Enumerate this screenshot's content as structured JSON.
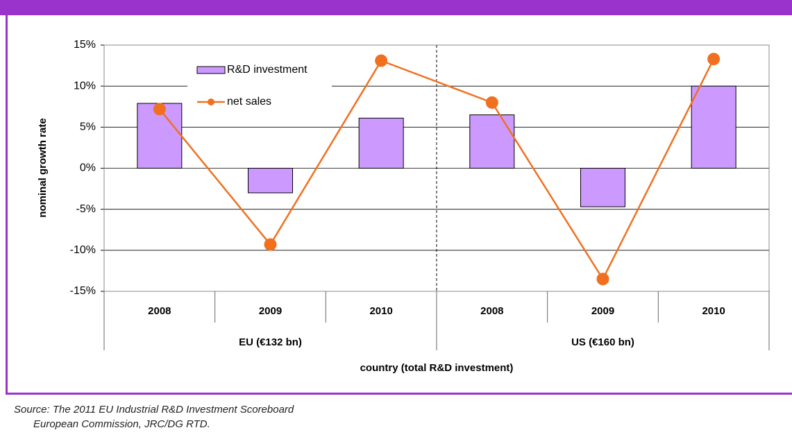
{
  "chart_data": {
    "type": "bar",
    "categories": [
      "2008",
      "2009",
      "2010",
      "2008",
      "2009",
      "2010"
    ],
    "groups": [
      "EU (€132 bn)",
      "US (€160 bn)"
    ],
    "series": [
      {
        "name": "R&D investment",
        "type": "bar",
        "color": "#cc99ff",
        "values": [
          7.9,
          -3.0,
          6.1,
          6.5,
          -4.7,
          10.0
        ]
      },
      {
        "name": "net sales",
        "type": "line",
        "color": "#f07020",
        "values": [
          7.2,
          -9.3,
          13.1,
          8.0,
          -13.5,
          13.3
        ]
      }
    ],
    "ylabel": "nominal growth rate",
    "xlabel": "country (total R&D investment)",
    "ylim": [
      -15,
      15
    ],
    "yticks": [
      {
        "value": -15,
        "label": "-15%"
      },
      {
        "value": -10,
        "label": "-10%"
      },
      {
        "value": -5,
        "label": "-5%"
      },
      {
        "value": 0,
        "label": "0%"
      },
      {
        "value": 5,
        "label": "5%"
      },
      {
        "value": 10,
        "label": "10%"
      },
      {
        "value": 15,
        "label": "15%"
      }
    ],
    "grid": true,
    "legend": "top-left"
  },
  "source": [
    "Source: The 2011 EU Industrial R&D Investment Scoreboard",
    "European Commission, JRC/DG RTD."
  ]
}
